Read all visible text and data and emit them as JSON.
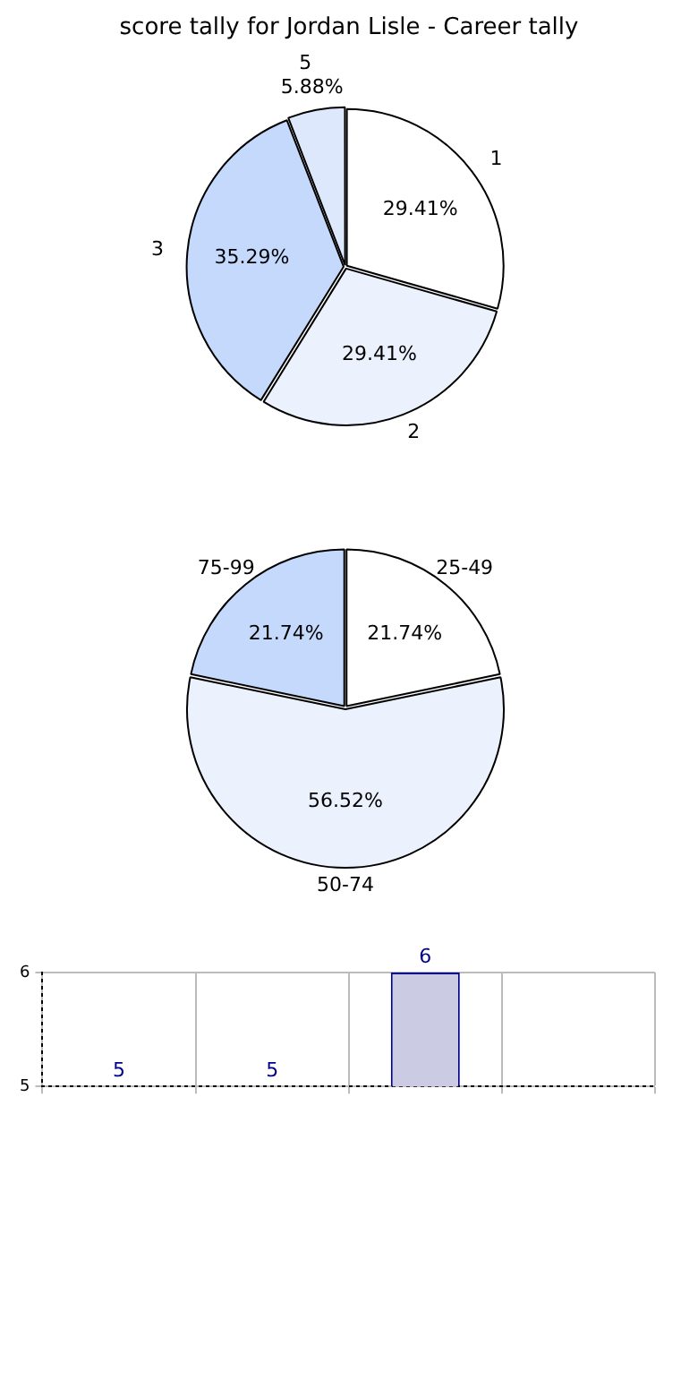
{
  "chart_data": [
    {
      "type": "pie",
      "title": "score tally for Jordan Lisle - Career tally",
      "categories": [
        "1",
        "2",
        "3",
        "5"
      ],
      "values": [
        29.41,
        29.41,
        35.29,
        5.88
      ],
      "value_labels": [
        "29.41%",
        "29.41%",
        "35.29%",
        "5.88%"
      ],
      "colors": [
        "#ffffff",
        "#ebf1fd",
        "#c5d9fd",
        "#dde8fd"
      ]
    },
    {
      "type": "pie",
      "categories": [
        "25-49",
        "50-74",
        "75-99"
      ],
      "values": [
        21.74,
        56.52,
        21.74
      ],
      "value_labels": [
        "21.74%",
        "56.52%",
        "21.74%"
      ],
      "colors": [
        "#ffffff",
        "#ebf1fd",
        "#c5d9fd"
      ]
    },
    {
      "type": "bar",
      "categories": [
        null,
        null,
        null,
        null
      ],
      "values": [
        5,
        5,
        6,
        null
      ],
      "color": "#cbcbe3",
      "data_labels": true,
      "ylim": [
        5,
        6
      ],
      "yticks": [
        5,
        6
      ],
      "grid": true
    }
  ]
}
